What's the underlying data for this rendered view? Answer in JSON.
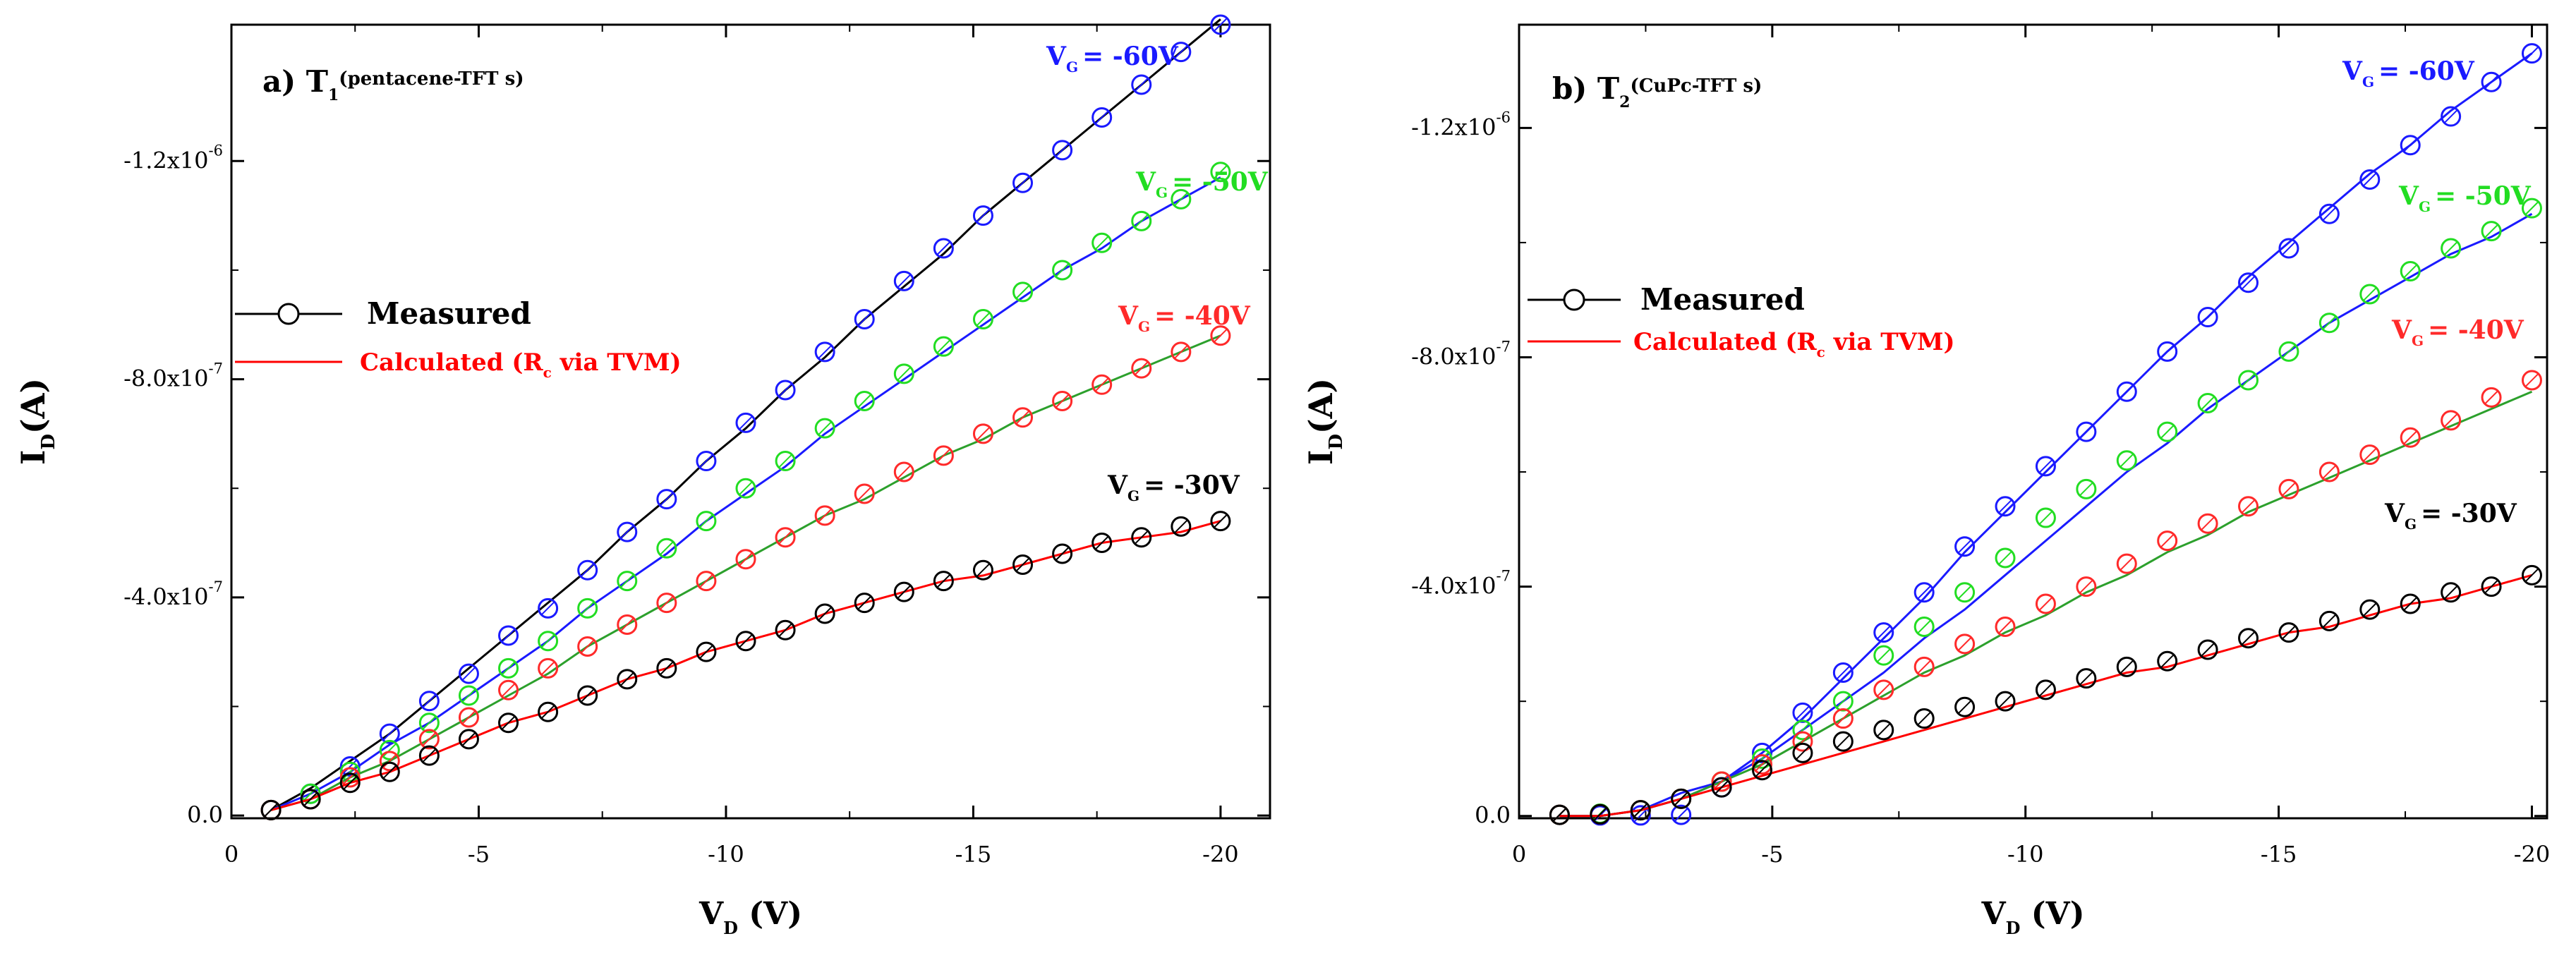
{
  "colors": {
    "vg60": "#1a1aff",
    "vg50": "#22dd22",
    "vg40": "#ff2a2a",
    "vg30": "#000000",
    "measured": "#000000",
    "calculated": "#ff0000"
  },
  "chart_data": [
    {
      "type": "line",
      "panel_label": "a) T",
      "panel_sub": "1",
      "panel_desc": "(pentacene-TFT s)",
      "xlabel": "V",
      "xlabel_sub": "D",
      "xlabel_unit": " (V)",
      "ylabel": "I",
      "ylabel_sub": "D",
      "ylabel_unit": "(A)",
      "xlim": [
        0,
        -21
      ],
      "ylim": [
        5e-09,
        -1.45e-06
      ],
      "xticks": [
        0,
        -5,
        -10,
        -15,
        -20
      ],
      "xtick_labels": [
        "0",
        "-5",
        "-10",
        "-15",
        "-20"
      ],
      "yticks": [
        0,
        -4e-07,
        -8e-07,
        -1.2e-06
      ],
      "ytick_labels": [
        {
          "base": "0.0",
          "exp": ""
        },
        {
          "base": "-4.0x10",
          "exp": "-7"
        },
        {
          "base": "-8.0x10",
          "exp": "-7"
        },
        {
          "base": "-1.2x10",
          "exp": "-6"
        }
      ],
      "legend": {
        "measured": "Measured",
        "calculated_prefix": "Calculated (R",
        "calculated_sub": "c",
        "calculated_suffix": " via TVM)"
      },
      "series": [
        {
          "name": "V_G = -60V",
          "label_base": "V",
          "label_sub": "G",
          "label_val": "= -60V",
          "color_key": "vg60",
          "x": [
            -0.8,
            -1.6,
            -2.4,
            -3.2,
            -4.0,
            -4.8,
            -5.6,
            -6.4,
            -7.2,
            -8.0,
            -8.8,
            -9.6,
            -10.4,
            -11.2,
            -12.0,
            -12.8,
            -13.6,
            -14.4,
            -15.2,
            -16.0,
            -16.8,
            -17.6,
            -18.4,
            -19.2,
            -20.0
          ],
          "measured": [
            -1e-08,
            -4e-08,
            -9e-08,
            -1.5e-07,
            -2.1e-07,
            -2.6e-07,
            -3.3e-07,
            -3.8e-07,
            -4.5e-07,
            -5.2e-07,
            -5.8e-07,
            -6.5e-07,
            -7.2e-07,
            -7.8e-07,
            -8.5e-07,
            -9.1e-07,
            -9.8e-07,
            -1.04e-06,
            -1.1e-06,
            -1.16e-06,
            -1.22e-06,
            -1.28e-06,
            -1.34e-06,
            -1.4e-06,
            -1.45e-06
          ],
          "calculated": [
            -1e-08,
            -5e-08,
            -1e-07,
            -1.5e-07,
            -2.1e-07,
            -2.7e-07,
            -3.3e-07,
            -3.9e-07,
            -4.5e-07,
            -5.2e-07,
            -5.8e-07,
            -6.5e-07,
            -7.1e-07,
            -7.8e-07,
            -8.4e-07,
            -9.1e-07,
            -9.7e-07,
            -1.03e-06,
            -1.1e-06,
            -1.16e-06,
            -1.22e-06,
            -1.28e-06,
            -1.34e-06,
            -1.4e-06,
            -1.46e-06
          ]
        },
        {
          "name": "V_G = -50V",
          "label_base": "V",
          "label_sub": "G",
          "label_val": "= -50V",
          "color_key": "vg50",
          "x": [
            -0.8,
            -1.6,
            -2.4,
            -3.2,
            -4.0,
            -4.8,
            -5.6,
            -6.4,
            -7.2,
            -8.0,
            -8.8,
            -9.6,
            -10.4,
            -11.2,
            -12.0,
            -12.8,
            -13.6,
            -14.4,
            -15.2,
            -16.0,
            -16.8,
            -17.6,
            -18.4,
            -19.2,
            -20.0
          ],
          "measured": [
            -1e-08,
            -4e-08,
            -8e-08,
            -1.2e-07,
            -1.7e-07,
            -2.2e-07,
            -2.7e-07,
            -3.2e-07,
            -3.8e-07,
            -4.3e-07,
            -4.9e-07,
            -5.4e-07,
            -6e-07,
            -6.5e-07,
            -7.1e-07,
            -7.6e-07,
            -8.1e-07,
            -8.6e-07,
            -9.1e-07,
            -9.6e-07,
            -1e-06,
            -1.05e-06,
            -1.09e-06,
            -1.13e-06,
            -1.18e-06
          ],
          "calculated": [
            -1e-08,
            -4e-08,
            -8e-08,
            -1.3e-07,
            -1.7e-07,
            -2.2e-07,
            -2.7e-07,
            -3.2e-07,
            -3.8e-07,
            -4.3e-07,
            -4.8e-07,
            -5.4e-07,
            -5.9e-07,
            -6.4e-07,
            -7e-07,
            -7.5e-07,
            -8e-07,
            -8.5e-07,
            -9e-07,
            -9.5e-07,
            -1e-06,
            -1.04e-06,
            -1.09e-06,
            -1.13e-06,
            -1.17e-06
          ]
        },
        {
          "name": "V_G = -40V",
          "label_base": "V",
          "label_sub": "G",
          "label_val": "= -40V",
          "color_key": "vg40",
          "x": [
            -0.8,
            -1.6,
            -2.4,
            -3.2,
            -4.0,
            -4.8,
            -5.6,
            -6.4,
            -7.2,
            -8.0,
            -8.8,
            -9.6,
            -10.4,
            -11.2,
            -12.0,
            -12.8,
            -13.6,
            -14.4,
            -15.2,
            -16.0,
            -16.8,
            -17.6,
            -18.4,
            -19.2,
            -20.0
          ],
          "measured": [
            -1e-08,
            -3e-08,
            -7e-08,
            -1e-07,
            -1.4e-07,
            -1.8e-07,
            -2.3e-07,
            -2.7e-07,
            -3.1e-07,
            -3.5e-07,
            -3.9e-07,
            -4.3e-07,
            -4.7e-07,
            -5.1e-07,
            -5.5e-07,
            -5.9e-07,
            -6.3e-07,
            -6.6e-07,
            -7e-07,
            -7.3e-07,
            -7.6e-07,
            -7.9e-07,
            -8.2e-07,
            -8.5e-07,
            -8.8e-07
          ],
          "calculated": [
            -1e-08,
            -3e-08,
            -7e-08,
            -1e-07,
            -1.4e-07,
            -1.8e-07,
            -2.2e-07,
            -2.6e-07,
            -3.1e-07,
            -3.5e-07,
            -3.9e-07,
            -4.3e-07,
            -4.7e-07,
            -5.1e-07,
            -5.5e-07,
            -5.8e-07,
            -6.2e-07,
            -6.6e-07,
            -6.9e-07,
            -7.3e-07,
            -7.6e-07,
            -7.9e-07,
            -8.2e-07,
            -8.5e-07,
            -8.8e-07
          ]
        },
        {
          "name": "V_G = -30V",
          "label_base": "V",
          "label_sub": "G",
          "label_val": "= -30V",
          "color_key": "vg30",
          "x": [
            -0.8,
            -1.6,
            -2.4,
            -3.2,
            -4.0,
            -4.8,
            -5.6,
            -6.4,
            -7.2,
            -8.0,
            -8.8,
            -9.6,
            -10.4,
            -11.2,
            -12.0,
            -12.8,
            -13.6,
            -14.4,
            -15.2,
            -16.0,
            -16.8,
            -17.6,
            -18.4,
            -19.2,
            -20.0
          ],
          "measured": [
            -1e-08,
            -3e-08,
            -6e-08,
            -8e-08,
            -1.1e-07,
            -1.4e-07,
            -1.7e-07,
            -1.9e-07,
            -2.2e-07,
            -2.5e-07,
            -2.7e-07,
            -3e-07,
            -3.2e-07,
            -3.4e-07,
            -3.7e-07,
            -3.9e-07,
            -4.1e-07,
            -4.3e-07,
            -4.5e-07,
            -4.6e-07,
            -4.8e-07,
            -5e-07,
            -5.1e-07,
            -5.3e-07,
            -5.4e-07
          ],
          "calculated": [
            -1e-08,
            -3e-08,
            -6e-08,
            -8e-08,
            -1.1e-07,
            -1.4e-07,
            -1.7e-07,
            -1.9e-07,
            -2.2e-07,
            -2.5e-07,
            -2.7e-07,
            -3e-07,
            -3.2e-07,
            -3.4e-07,
            -3.7e-07,
            -3.9e-07,
            -4.1e-07,
            -4.3e-07,
            -4.4e-07,
            -4.6e-07,
            -4.8e-07,
            -5e-07,
            -5.1e-07,
            -5.2e-07,
            -5.4e-07
          ]
        }
      ]
    },
    {
      "type": "line",
      "panel_label": "b) T",
      "panel_sub": "2",
      "panel_desc": "(CuPc-TFT s)",
      "xlabel": "V",
      "xlabel_sub": "D",
      "xlabel_unit": " (V)",
      "ylabel": "I",
      "ylabel_sub": "D",
      "ylabel_unit": "(A)",
      "xlim": [
        0,
        -20.3
      ],
      "ylim": [
        4e-09,
        -1.38e-06
      ],
      "xticks": [
        0,
        -5,
        -10,
        -15,
        -20
      ],
      "xtick_labels": [
        "0",
        "-5",
        "-10",
        "-15",
        "-20"
      ],
      "yticks": [
        0,
        -4e-07,
        -8e-07,
        -1.2e-06
      ],
      "ytick_labels": [
        {
          "base": "0.0",
          "exp": ""
        },
        {
          "base": "-4.0x10",
          "exp": "-7"
        },
        {
          "base": "-8.0x10",
          "exp": "-7"
        },
        {
          "base": "-1.2x10",
          "exp": "-6"
        }
      ],
      "legend": {
        "measured": "Measured",
        "calculated_prefix": "Calculated (R",
        "calculated_sub": "c",
        "calculated_suffix": " via TVM)"
      },
      "series": [
        {
          "name": "V_G = -60V",
          "label_base": "V",
          "label_sub": "G",
          "label_val": "= -60V",
          "color_key": "vg60",
          "x": [
            -0.8,
            -1.6,
            -2.4,
            -3.2,
            -4.0,
            -4.8,
            -5.6,
            -6.4,
            -7.2,
            -8.0,
            -8.8,
            -9.6,
            -10.4,
            -11.2,
            -12.0,
            -12.8,
            -13.6,
            -14.4,
            -15.2,
            -16.0,
            -16.8,
            -17.6,
            -18.4,
            -19.2,
            -20.0
          ],
          "measured": [
            -2e-09,
            -1e-09,
            -1e-09,
            -2e-09,
            -5e-08,
            -1.1e-07,
            -1.8e-07,
            -2.5e-07,
            -3.2e-07,
            -3.9e-07,
            -4.7e-07,
            -5.4e-07,
            -6.1e-07,
            -6.7e-07,
            -7.4e-07,
            -8.1e-07,
            -8.7e-07,
            -9.3e-07,
            -9.9e-07,
            -1.05e-06,
            -1.11e-06,
            -1.17e-06,
            -1.22e-06,
            -1.28e-06,
            -1.33e-06
          ],
          "calculated": [
            -0.0,
            -0.0,
            -1e-08,
            -4e-08,
            -6e-08,
            -1.1e-07,
            -1.7e-07,
            -2.4e-07,
            -3.1e-07,
            -3.8e-07,
            -4.6e-07,
            -5.3e-07,
            -6e-07,
            -6.7e-07,
            -7.4e-07,
            -8.1e-07,
            -8.7e-07,
            -9.4e-07,
            -1e-06,
            -1.06e-06,
            -1.12e-06,
            -1.17e-06,
            -1.23e-06,
            -1.28e-06,
            -1.33e-06
          ]
        },
        {
          "name": "V_G = -50V",
          "label_base": "V",
          "label_sub": "G",
          "label_val": "= -50V",
          "color_key": "vg50",
          "x": [
            -0.8,
            -1.6,
            -2.4,
            -3.2,
            -4.0,
            -4.8,
            -5.6,
            -6.4,
            -7.2,
            -8.0,
            -8.8,
            -9.6,
            -10.4,
            -11.2,
            -12.0,
            -12.8,
            -13.6,
            -14.4,
            -15.2,
            -16.0,
            -16.8,
            -17.6,
            -18.4,
            -19.2,
            -20.0
          ],
          "measured": [
            -2e-09,
            -4e-09,
            -1e-08,
            -3e-08,
            -6e-08,
            -1e-07,
            -1.5e-07,
            -2e-07,
            -2.8e-07,
            -3.3e-07,
            -3.9e-07,
            -4.5e-07,
            -5.2e-07,
            -5.7e-07,
            -6.2e-07,
            -6.7e-07,
            -7.2e-07,
            -7.6e-07,
            -8.1e-07,
            -8.6e-07,
            -9.1e-07,
            -9.5e-07,
            -9.9e-07,
            -1.02e-06,
            -1.06e-06
          ],
          "calculated": [
            -0.0,
            -0.0,
            -1e-08,
            -3e-08,
            -6e-08,
            -1e-07,
            -1.5e-07,
            -2e-07,
            -2.5e-07,
            -3.1e-07,
            -3.6e-07,
            -4.2e-07,
            -4.8e-07,
            -5.4e-07,
            -6e-07,
            -6.5e-07,
            -7.1e-07,
            -7.6e-07,
            -8.1e-07,
            -8.6e-07,
            -9e-07,
            -9.4e-07,
            -9.8e-07,
            -1.01e-06,
            -1.05e-06
          ]
        },
        {
          "name": "V_G = -40V",
          "label_base": "V",
          "label_sub": "G",
          "label_val": "= -40V",
          "color_key": "vg40",
          "x": [
            -0.8,
            -1.6,
            -2.4,
            -3.2,
            -4.0,
            -4.8,
            -5.6,
            -6.4,
            -7.2,
            -8.0,
            -8.8,
            -9.6,
            -10.4,
            -11.2,
            -12.0,
            -12.8,
            -13.6,
            -14.4,
            -15.2,
            -16.0,
            -16.8,
            -17.6,
            -18.4,
            -19.2,
            -20.0
          ],
          "measured": [
            -2e-09,
            -3e-09,
            -1e-08,
            -3e-08,
            -6e-08,
            -9e-08,
            -1.3e-07,
            -1.7e-07,
            -2.2e-07,
            -2.6e-07,
            -3e-07,
            -3.3e-07,
            -3.7e-07,
            -4e-07,
            -4.4e-07,
            -4.8e-07,
            -5.1e-07,
            -5.4e-07,
            -5.7e-07,
            -6e-07,
            -6.3e-07,
            -6.6e-07,
            -6.9e-07,
            -7.3e-07,
            -7.6e-07
          ],
          "calculated": [
            -0.0,
            -0.0,
            -1e-08,
            -3e-08,
            -6e-08,
            -9e-08,
            -1.3e-07,
            -1.7e-07,
            -2.1e-07,
            -2.5e-07,
            -2.8e-07,
            -3.2e-07,
            -3.5e-07,
            -3.9e-07,
            -4.2e-07,
            -4.6e-07,
            -4.9e-07,
            -5.3e-07,
            -5.6e-07,
            -5.9e-07,
            -6.2e-07,
            -6.5e-07,
            -6.8e-07,
            -7.1e-07,
            -7.4e-07
          ]
        },
        {
          "name": "V_G = -30V",
          "label_base": "V",
          "label_sub": "G",
          "label_val": "= -30V",
          "color_key": "vg30",
          "x": [
            -0.8,
            -1.6,
            -2.4,
            -3.2,
            -4.0,
            -4.8,
            -5.6,
            -6.4,
            -7.2,
            -8.0,
            -8.8,
            -9.6,
            -10.4,
            -11.2,
            -12.0,
            -12.8,
            -13.6,
            -14.4,
            -15.2,
            -16.0,
            -16.8,
            -17.6,
            -18.4,
            -19.2,
            -20.0
          ],
          "measured": [
            -2e-09,
            -3e-09,
            -1e-08,
            -3e-08,
            -5e-08,
            -8e-08,
            -1.1e-07,
            -1.3e-07,
            -1.5e-07,
            -1.7e-07,
            -1.9e-07,
            -2e-07,
            -2.2e-07,
            -2.4e-07,
            -2.6e-07,
            -2.7e-07,
            -2.9e-07,
            -3.1e-07,
            -3.2e-07,
            -3.4e-07,
            -3.6e-07,
            -3.7e-07,
            -3.9e-07,
            -4e-07,
            -4.2e-07
          ],
          "calculated": [
            -0.0,
            -0.0,
            -1e-08,
            -3e-08,
            -5e-08,
            -7e-08,
            -9e-08,
            -1.1e-07,
            -1.3e-07,
            -1.5e-07,
            -1.7e-07,
            -1.9e-07,
            -2.1e-07,
            -2.3e-07,
            -2.5e-07,
            -2.6e-07,
            -2.8e-07,
            -3e-07,
            -3.2e-07,
            -3.3e-07,
            -3.5e-07,
            -3.7e-07,
            -3.8e-07,
            -4e-07,
            -4.2e-07
          ]
        }
      ]
    }
  ]
}
